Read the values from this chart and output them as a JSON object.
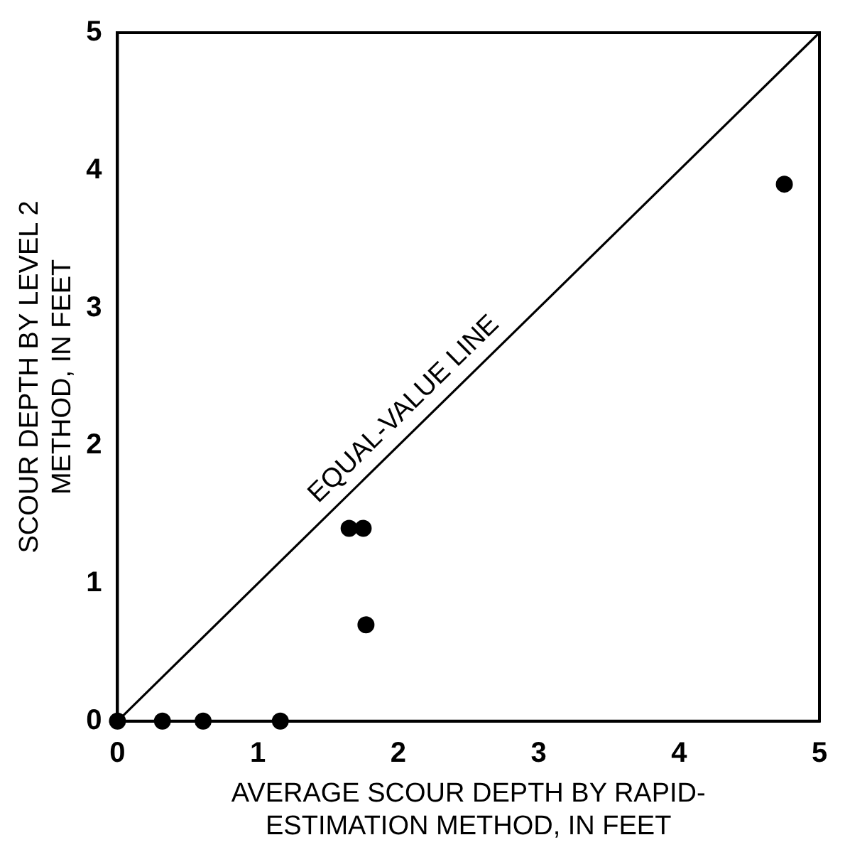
{
  "chart_data": {
    "type": "scatter",
    "xlabel": "AVERAGE SCOUR DEPTH BY RAPID-\nESTIMATION METHOD, IN FEET",
    "ylabel": "SCOUR DEPTH BY LEVEL 2\nMETHOD, IN FEET",
    "xlim": [
      0,
      5
    ],
    "xticks": [
      0,
      1,
      2,
      3,
      4,
      5
    ],
    "ylim": [
      0,
      5
    ],
    "yticks": [
      0,
      1,
      2,
      3,
      4,
      5
    ],
    "grid": false,
    "legend": false,
    "marker": "circle",
    "series": [
      {
        "color": "#000000",
        "x": [
          0,
          0.32,
          0.61,
          1.16,
          1.65,
          1.75,
          1.77,
          4.75
        ],
        "values": [
          0,
          0,
          0,
          0,
          1.4,
          1.4,
          0.7,
          3.9
        ]
      },
      {
        "type": "line",
        "name": "EQUAL-VALUE LINE",
        "color": "#000000",
        "line_style": "solid",
        "marker": "none",
        "x": [
          0,
          5
        ],
        "values": [
          0,
          5
        ]
      }
    ]
  }
}
